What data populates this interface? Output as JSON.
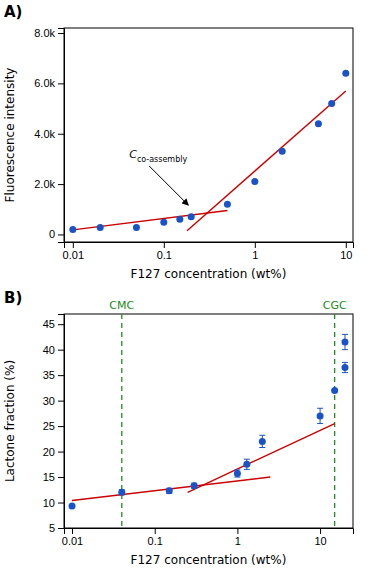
{
  "chart_data": [
    {
      "type": "scatter",
      "title": "A)",
      "x_label": "F127 concentration (wt%)",
      "y_label": "Fluorescence intensity",
      "log": "x",
      "xlim": [
        0.008,
        12
      ],
      "ylim": [
        -300,
        8200
      ],
      "xticks": [
        0.01,
        0.1,
        1,
        10
      ],
      "yticks": [
        0,
        {
          "value": 2000,
          "label": "2.0k"
        },
        {
          "value": 4000,
          "label": "4.0k"
        },
        {
          "value": 6000,
          "label": "6.0k"
        },
        {
          "value": 8000,
          "label": "8.0k"
        }
      ],
      "series": [
        {
          "type": "scatter",
          "color": "#1a52c8",
          "marker": "circle",
          "x": [
            0.01,
            0.02,
            0.05,
            0.1,
            0.15,
            0.2,
            0.5,
            1.0,
            2.0,
            5.0,
            7.0,
            10.0
          ],
          "values": [
            200,
            280,
            280,
            480,
            600,
            700,
            1200,
            2100,
            3300,
            4400,
            5200,
            6400
          ]
        },
        {
          "type": "line",
          "color": "#cc0000",
          "line_style": "solid",
          "x": [
            0.01,
            0.5
          ],
          "values": [
            180,
            950
          ]
        },
        {
          "type": "line",
          "color": "#cc0000",
          "line_style": "solid",
          "x": [
            0.18,
            10.0
          ],
          "values": [
            150,
            5700
          ]
        }
      ],
      "annotations": [
        {
          "text": "C",
          "subscript": "co-assembly",
          "x": 0.2,
          "y": 1050
        }
      ]
    },
    {
      "type": "scatter",
      "title": "B)",
      "x_label": "F127 concentration (wt%)",
      "y_label": "Lactone fraction (%)",
      "log": "x",
      "xlim": [
        0.008,
        25
      ],
      "ylim": [
        5,
        47
      ],
      "xticks": [
        0.01,
        0.1,
        1,
        10
      ],
      "yticks": [
        5,
        10,
        15,
        20,
        25,
        30,
        35,
        40,
        45
      ],
      "series": [
        {
          "type": "scatter",
          "color": "#1a52c8",
          "marker": "circle",
          "x": [
            0.01,
            0.04,
            0.15,
            0.3,
            1.0,
            1.3,
            2.0,
            10.0,
            15.0,
            20.0,
            20.0
          ],
          "values": [
            9.3,
            12.0,
            12.3,
            13.3,
            15.7,
            17.5,
            22.0,
            27.0,
            32.0,
            36.5,
            41.5
          ],
          "errors": [
            0.0,
            0.5,
            0.5,
            0.5,
            0.7,
            1.0,
            1.2,
            1.5,
            0.0,
            1.0,
            1.5
          ]
        },
        {
          "type": "line",
          "color": "#cc0000",
          "line_style": "solid",
          "x": [
            0.01,
            2.5
          ],
          "values": [
            10.4,
            15.0
          ]
        },
        {
          "type": "line",
          "color": "#cc0000",
          "line_style": "solid",
          "x": [
            0.25,
            15.0
          ],
          "values": [
            12.0,
            25.5
          ]
        }
      ],
      "vlines": [
        {
          "x": 0.04,
          "label": "CMC",
          "color": "#228B22",
          "line_style": "dashed"
        },
        {
          "x": 15.0,
          "label": "CGC",
          "color": "#228B22",
          "line_style": "dashed"
        }
      ]
    }
  ]
}
